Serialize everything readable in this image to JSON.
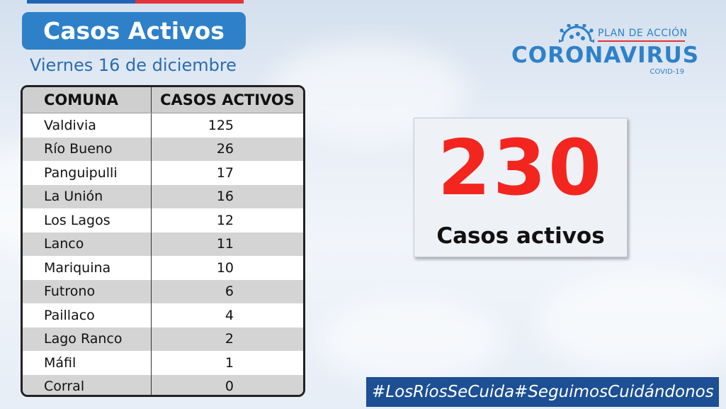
{
  "header": {
    "title": "Casos Activos",
    "date": "Viernes 16 de diciembre"
  },
  "table": {
    "headers": [
      "COMUNA",
      "CASOS ACTIVOS"
    ],
    "rows": [
      {
        "comuna": "Valdivia",
        "casos": "125"
      },
      {
        "comuna": "Río Bueno",
        "casos": "26"
      },
      {
        "comuna": "Panguipulli",
        "casos": "17"
      },
      {
        "comuna": "La Unión",
        "casos": "16"
      },
      {
        "comuna": "Los Lagos",
        "casos": "12"
      },
      {
        "comuna": "Lanco",
        "casos": "11"
      },
      {
        "comuna": "Mariquina",
        "casos": "10"
      },
      {
        "comuna": "Futrono",
        "casos": "6"
      },
      {
        "comuna": "Paillaco",
        "casos": "4"
      },
      {
        "comuna": "Lago Ranco",
        "casos": "2"
      },
      {
        "comuna": "Máfil",
        "casos": "1"
      },
      {
        "comuna": "Corral",
        "casos": "0"
      }
    ]
  },
  "logo": {
    "plan": "PLAN DE ACCIÓN",
    "name": "CORONAVIRUS",
    "sub": "COVID-19",
    "icon": "virus-icon"
  },
  "total": {
    "value": "230",
    "label": "Casos activos"
  },
  "hashtags": [
    "#LosRíosSeCuida",
    "#SeguimosCuidándonos"
  ],
  "colors": {
    "brand_blue": "#2e81c9",
    "dark_blue": "#1c4f94",
    "red": "#f2261e"
  }
}
